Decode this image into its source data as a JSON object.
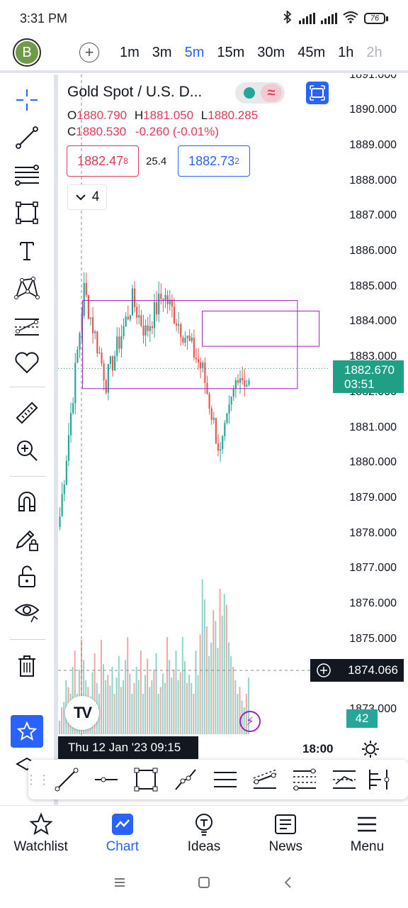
{
  "status_bar": {
    "time": "3:31 PM",
    "battery": "76"
  },
  "toolbar": {
    "avatar_letter": "B",
    "intervals": [
      "1m",
      "3m",
      "5m",
      "15m",
      "30m",
      "45m",
      "1h",
      "2h"
    ],
    "active_interval": "5m"
  },
  "legend": {
    "title": "Gold Spot / U.S. D...",
    "open_label": "O",
    "open": "1880.790",
    "high_label": "H",
    "high": "1881.050",
    "low_label": "L",
    "low": "1880.285",
    "close_label": "C",
    "close": "1880.530",
    "change": "-0.260 (-0.01%)",
    "bid_main": "1882.47",
    "bid_sup": "8",
    "spread": "25.4",
    "ask_main": "1882.73",
    "ask_sup": "2",
    "collapsed_count": "4"
  },
  "price_axis": {
    "ticks": [
      "1891.000",
      "1890.000",
      "1889.000",
      "1888.000",
      "1887.000",
      "1886.000",
      "1885.000",
      "1884.000",
      "1883.000",
      "1882.000",
      "1881.000",
      "1880.000",
      "1879.000",
      "1878.000",
      "1877.000",
      "1876.000",
      "1875.000",
      "1874.000",
      "1873.000"
    ],
    "current_price": "1882.670",
    "countdown": "03:51",
    "crosshair_price": "1874.066",
    "volume_value": "42"
  },
  "time_axis": {
    "crosshair_time": "Thu 12 Jan '23   09:15",
    "tick": "18:00"
  },
  "colors": {
    "accent": "#2962ff",
    "up": "#26a69a",
    "down": "#ef5350",
    "rect": "#9c27b0",
    "current_price_bg": "#1e9f86"
  },
  "chart_data": {
    "type": "candlestick",
    "symbol": "Gold Spot / U.S. D...",
    "interval": "5m",
    "ylim": [
      1873,
      1891
    ],
    "segments": [
      {
        "from": 1877.9,
        "to": 1884.9,
        "n": 12
      },
      {
        "from": 1884.9,
        "to": 1882.3,
        "n": 10
      },
      {
        "from": 1882.3,
        "to": 1884.6,
        "n": 12
      },
      {
        "from": 1884.6,
        "to": 1883.7,
        "n": 6
      },
      {
        "from": 1883.7,
        "to": 1884.8,
        "n": 8
      },
      {
        "from": 1884.8,
        "to": 1883.6,
        "n": 10
      },
      {
        "from": 1883.6,
        "to": 1882.6,
        "n": 8
      },
      {
        "from": 1882.6,
        "to": 1880.2,
        "n": 8
      },
      {
        "from": 1880.2,
        "to": 1882.6,
        "n": 8
      },
      {
        "from": 1882.6,
        "to": 1882.2,
        "n": 5
      }
    ],
    "volumes": [
      10,
      20,
      24,
      40,
      35,
      30,
      50,
      62,
      30,
      48,
      70,
      55,
      40,
      35,
      28,
      46,
      60,
      38,
      30,
      70,
      52,
      40,
      44,
      36,
      50,
      30,
      42,
      58,
      35,
      40,
      55,
      72,
      45,
      30,
      38,
      50,
      40,
      62,
      30,
      44,
      56,
      35,
      40,
      48,
      60,
      30,
      35,
      45,
      38,
      72,
      55,
      42,
      48,
      62,
      40,
      46,
      72,
      54,
      38,
      44,
      38,
      30,
      62,
      44,
      74,
      115,
      100,
      80,
      58,
      68,
      92,
      84,
      64,
      108,
      88,
      104,
      96,
      68,
      58,
      50,
      40,
      30,
      35,
      25,
      20,
      30,
      42
    ],
    "rectangles": [
      {
        "x1": 0.09,
        "x2": 0.88,
        "y1": 1882.1,
        "y2": 1884.6
      },
      {
        "x1": 0.53,
        "x2": 0.96,
        "y1": 1883.3,
        "y2": 1884.3
      }
    ],
    "crosshair": {
      "price": 1874.066,
      "time": "Thu 12 Jan '23   09:15"
    },
    "current_price": 1882.67
  },
  "draw_toolbar": [
    "trend-line",
    "horizontal-ray",
    "rectangle",
    "path",
    "parallel-channel",
    "regression-trend",
    "fib-retracement",
    "fib-extension",
    "long-position",
    "vertical-line"
  ],
  "nav": {
    "items": [
      {
        "label": "Watchlist"
      },
      {
        "label": "Chart"
      },
      {
        "label": "Ideas"
      },
      {
        "label": "News"
      },
      {
        "label": "Menu"
      }
    ]
  }
}
